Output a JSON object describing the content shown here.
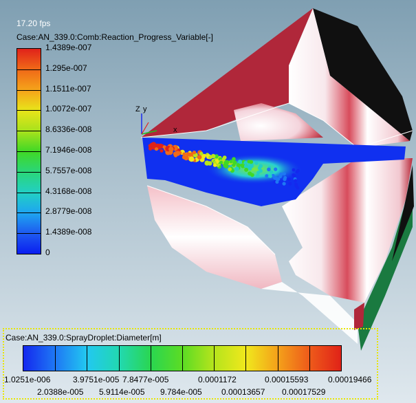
{
  "viewer": {
    "fps": "17.20 fps",
    "axis_labels": {
      "z": "Z",
      "y": "y",
      "x": "x"
    }
  },
  "vertical_legend": {
    "title": "Case:AN_339.0:Comb:Reaction_Progress_Variable[-]",
    "labels": [
      "1.4389e-007",
      "1.295e-007",
      "1.1511e-007",
      "1.0072e-007",
      "8.6336e-008",
      "7.1946e-008",
      "5.7557e-008",
      "4.3168e-008",
      "2.8779e-008",
      "1.4389e-008",
      "0"
    ],
    "colors": [
      "#e0221a",
      "#f06a18",
      "#f5a41a",
      "#e8e41a",
      "#a8e21c",
      "#40d826",
      "#2ad67a",
      "#22cfc4",
      "#1ea6f0",
      "#1e5af0",
      "#0a1ef0"
    ]
  },
  "horizontal_legend": {
    "title": "Case:AN_339.0:SprayDroplet:Diameter[m]",
    "labels_top": [
      "1.0251e-006",
      "3.9751e-005",
      "7.8477e-005",
      "0.0001172",
      "0.00015593",
      "0.00019466"
    ],
    "labels_bottom": [
      "2.0388e-005",
      "5.9114e-005",
      "9.784e-005",
      "0.00013657",
      "0.00017529"
    ],
    "colors": [
      "#1428ee",
      "#1e78f4",
      "#22c8f0",
      "#22d8b0",
      "#2ad650",
      "#5cdc24",
      "#b6e41c",
      "#f0e81c",
      "#f4a01a",
      "#ee5a1a",
      "#e02218"
    ]
  },
  "colors": {
    "wall_red": "#b0273a",
    "wall_black": "#101010",
    "wall_green": "#1a7a40",
    "plane_blue": "#1030f0",
    "legend_border": "#e8e600"
  }
}
